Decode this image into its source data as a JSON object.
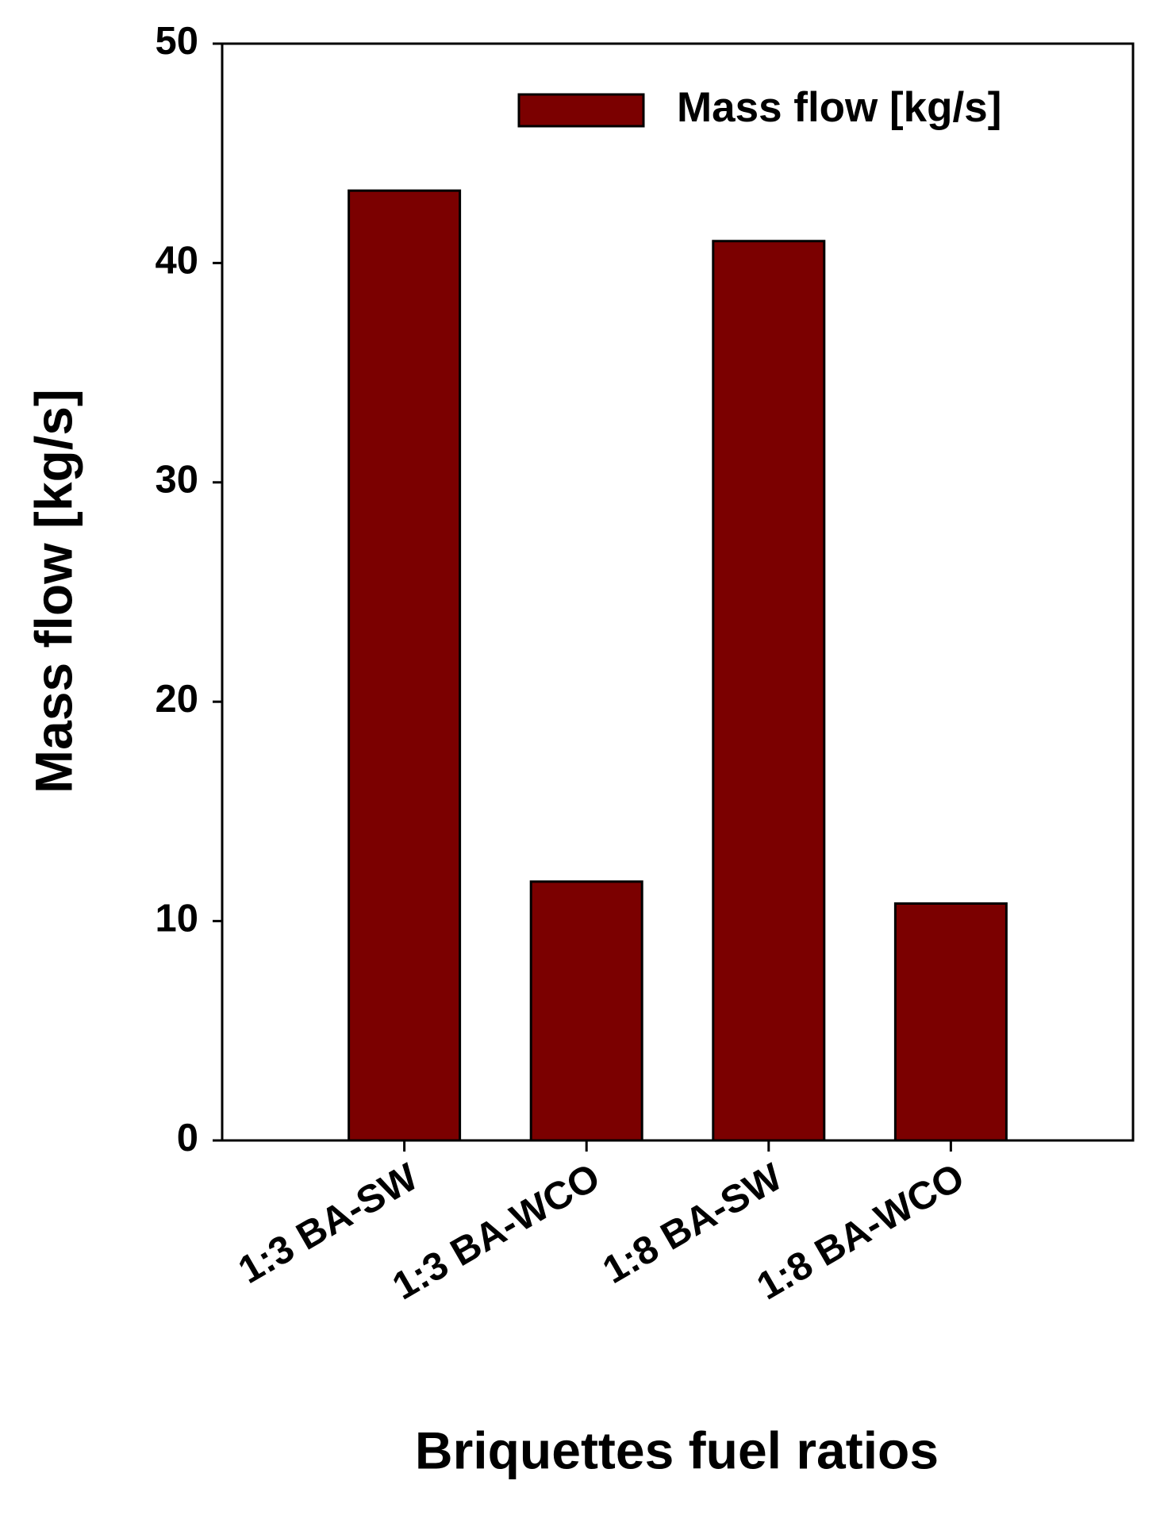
{
  "chart_data": {
    "type": "bar",
    "categories": [
      "1:3 BA-SW",
      "1:3 BA-WCO",
      "1:8 BA-SW",
      "1:8 BA-WCO"
    ],
    "series": [
      {
        "name": "Mass flow [kg/s]",
        "color": "#7b0000",
        "values": [
          43.3,
          11.8,
          41.0,
          10.8
        ]
      }
    ],
    "xlabel": "Briquettes fuel ratios",
    "ylabel": "Mass flow [kg/s]",
    "ylim": [
      0,
      50
    ],
    "yticks": [
      0,
      10,
      20,
      30,
      40,
      50
    ],
    "legend": "upper right",
    "grid": false
  }
}
